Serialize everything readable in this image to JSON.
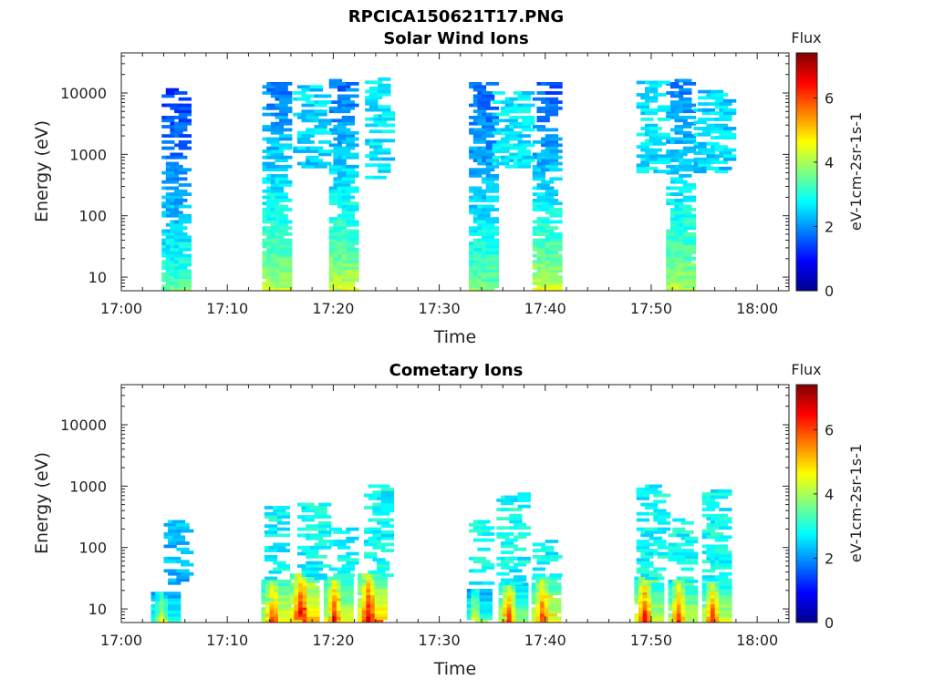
{
  "figure_title": "RPCICA150621T17.PNG",
  "chart_data": [
    {
      "type": "heatmap",
      "title": "Solar Wind Ions",
      "xlabel": "Time",
      "ylabel": "Energy (eV)",
      "x_ticks": [
        "17:00",
        "17:10",
        "17:20",
        "17:30",
        "17:40",
        "17:50",
        "18:00"
      ],
      "x_range_minutes": [
        0,
        63
      ],
      "y_scale": "log",
      "y_ticks": [
        "10",
        "100",
        "1000",
        "10000"
      ],
      "y_range": [
        6,
        45000
      ],
      "colorbar": {
        "title": "Flux",
        "label": "eV-1cm-2sr-1s-1",
        "ticks": [
          "0",
          "2",
          "4",
          "6"
        ],
        "range": [
          0,
          7.4
        ],
        "colormap": "jet"
      },
      "bursts": [
        {
          "t_start": 3.8,
          "t_end": 5.8,
          "e_min": 6,
          "e_max": 12500,
          "flux_high": 1.3,
          "flux_low": 3.6
        },
        {
          "t_start": 13.3,
          "t_end": 15.1,
          "e_min": 6,
          "e_max": 15000,
          "flux_high": 1.8,
          "flux_low": 4.3
        },
        {
          "t_start": 19.6,
          "t_end": 21.5,
          "e_min": 6,
          "e_max": 16000,
          "flux_high": 1.7,
          "flux_low": 4.4
        },
        {
          "t_start": 32.8,
          "t_end": 34.6,
          "e_min": 6,
          "e_max": 14000,
          "flux_high": 1.6,
          "flux_low": 3.8
        },
        {
          "t_start": 38.8,
          "t_end": 40.6,
          "e_min": 6,
          "e_max": 14000,
          "flux_high": 1.5,
          "flux_low": 4.5
        },
        {
          "t_start": 51.4,
          "t_end": 53.3,
          "e_min": 6,
          "e_max": 16000,
          "flux_high": 1.8,
          "flux_low": 4.2
        }
      ],
      "scatter": [
        {
          "t_start": 16.2,
          "t_end": 18.8,
          "e_min": 600,
          "e_max": 12000,
          "flux": 2.5,
          "density": 0.35
        },
        {
          "t_start": 23.0,
          "t_end": 24.8,
          "e_min": 400,
          "e_max": 20000,
          "flux": 2.6,
          "density": 0.3
        },
        {
          "t_start": 35.0,
          "t_end": 37.8,
          "e_min": 600,
          "e_max": 10000,
          "flux": 2.6,
          "density": 0.35
        },
        {
          "t_start": 48.6,
          "t_end": 50.6,
          "e_min": 500,
          "e_max": 15000,
          "flux": 2.6,
          "density": 0.3
        },
        {
          "t_start": 54.0,
          "t_end": 56.8,
          "e_min": 500,
          "e_max": 10000,
          "flux": 2.5,
          "density": 0.35
        }
      ]
    },
    {
      "type": "heatmap",
      "title": "Cometary Ions",
      "xlabel": "Time",
      "ylabel": "Energy (eV)",
      "x_ticks": [
        "17:00",
        "17:10",
        "17:20",
        "17:30",
        "17:40",
        "17:50",
        "18:00"
      ],
      "x_range_minutes": [
        0,
        63
      ],
      "y_scale": "log",
      "y_ticks": [
        "10",
        "100",
        "1000",
        "10000"
      ],
      "y_range": [
        6,
        45000
      ],
      "colorbar": {
        "title": "Flux",
        "label": "eV-1cm-2sr-1s-1",
        "ticks": [
          "0",
          "2",
          "4",
          "6"
        ],
        "range": [
          0,
          7.4
        ],
        "colormap": "jet"
      },
      "bursts": [
        {
          "t_start": 2.8,
          "t_end": 4.6,
          "e_min": 6,
          "e_max": 18,
          "flux_peak": 4.5
        },
        {
          "t_start": 13.2,
          "t_end": 15.2,
          "e_min": 6,
          "e_max": 30,
          "flux_peak": 6.2
        },
        {
          "t_start": 15.9,
          "t_end": 17.8,
          "e_min": 6,
          "e_max": 35,
          "flux_peak": 7.0
        },
        {
          "t_start": 19.1,
          "t_end": 20.9,
          "e_min": 6,
          "e_max": 32,
          "flux_peak": 6.4
        },
        {
          "t_start": 22.3,
          "t_end": 24.2,
          "e_min": 6,
          "e_max": 35,
          "flux_peak": 7.0
        },
        {
          "t_start": 32.6,
          "t_end": 33.9,
          "e_min": 6,
          "e_max": 20,
          "flux_peak": 4.8
        },
        {
          "t_start": 35.6,
          "t_end": 37.2,
          "e_min": 6,
          "e_max": 25,
          "flux_peak": 6.3
        },
        {
          "t_start": 38.7,
          "t_end": 40.6,
          "e_min": 6,
          "e_max": 32,
          "flux_peak": 6.2
        },
        {
          "t_start": 48.4,
          "t_end": 50.1,
          "e_min": 6,
          "e_max": 32,
          "flux_peak": 6.6
        },
        {
          "t_start": 51.6,
          "t_end": 53.4,
          "e_min": 6,
          "e_max": 28,
          "flux_peak": 6.2
        },
        {
          "t_start": 54.8,
          "t_end": 56.6,
          "e_min": 6,
          "e_max": 25,
          "flux_peak": 6.3
        }
      ],
      "scatter": [
        {
          "t_start": 4.0,
          "t_end": 5.8,
          "e_min": 25,
          "e_max": 260,
          "flux": 2.3,
          "density": 0.35
        },
        {
          "t_start": 13.5,
          "t_end": 15.0,
          "e_min": 30,
          "e_max": 450,
          "flux": 2.8,
          "density": 0.3
        },
        {
          "t_start": 16.6,
          "t_end": 18.6,
          "e_min": 30,
          "e_max": 650,
          "flux": 2.8,
          "density": 0.35
        },
        {
          "t_start": 19.6,
          "t_end": 21.2,
          "e_min": 30,
          "e_max": 200,
          "flux": 2.8,
          "density": 0.3
        },
        {
          "t_start": 22.9,
          "t_end": 24.6,
          "e_min": 30,
          "e_max": 950,
          "flux": 2.8,
          "density": 0.35
        },
        {
          "t_start": 32.8,
          "t_end": 34.0,
          "e_min": 25,
          "e_max": 250,
          "flux": 2.8,
          "density": 0.25
        },
        {
          "t_start": 35.4,
          "t_end": 37.6,
          "e_min": 25,
          "e_max": 750,
          "flux": 2.8,
          "density": 0.35
        },
        {
          "t_start": 38.8,
          "t_end": 40.4,
          "e_min": 30,
          "e_max": 120,
          "flux": 2.8,
          "density": 0.25
        },
        {
          "t_start": 48.6,
          "t_end": 50.6,
          "e_min": 30,
          "e_max": 1000,
          "flux": 2.8,
          "density": 0.35
        },
        {
          "t_start": 51.6,
          "t_end": 53.4,
          "e_min": 30,
          "e_max": 300,
          "flux": 2.8,
          "density": 0.3
        },
        {
          "t_start": 54.8,
          "t_end": 56.6,
          "e_min": 25,
          "e_max": 900,
          "flux": 2.8,
          "density": 0.35
        }
      ]
    }
  ]
}
